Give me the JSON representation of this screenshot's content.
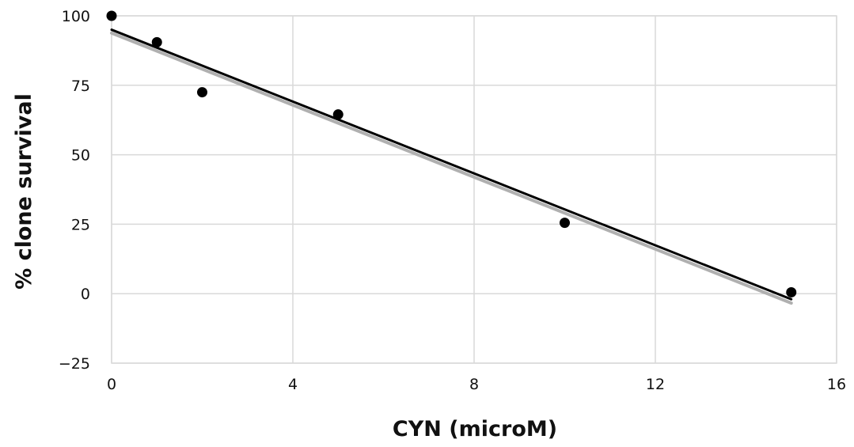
{
  "chart_data": {
    "type": "scatter",
    "title": "",
    "xlabel": "CYN (microM)",
    "ylabel": "% clone survival",
    "xlim": [
      0,
      16
    ],
    "ylim": [
      -25,
      100
    ],
    "x_ticks": [
      0,
      4,
      8,
      12,
      16
    ],
    "y_ticks": [
      -25,
      0,
      25,
      50,
      75,
      100
    ],
    "x_tick_labels": [
      "0",
      "4",
      "8",
      "12",
      "16"
    ],
    "y_tick_labels": [
      "−25",
      "0",
      "25",
      "50",
      "75",
      "100"
    ],
    "grid": true,
    "legend": "none",
    "series": [
      {
        "kind": "points",
        "color": "#000000",
        "x": [
          0,
          1,
          2,
          5,
          10,
          15
        ],
        "y": [
          100,
          90.5,
          72.5,
          64.5,
          25.5,
          0.5
        ]
      },
      {
        "kind": "trendline",
        "color": "#000000",
        "x": [
          0,
          15
        ],
        "y": [
          95,
          -2
        ]
      },
      {
        "kind": "trendline-shadow",
        "color": "#b0b0b0",
        "x": [
          0,
          15
        ],
        "y": [
          93.8,
          -3.4
        ]
      }
    ]
  }
}
